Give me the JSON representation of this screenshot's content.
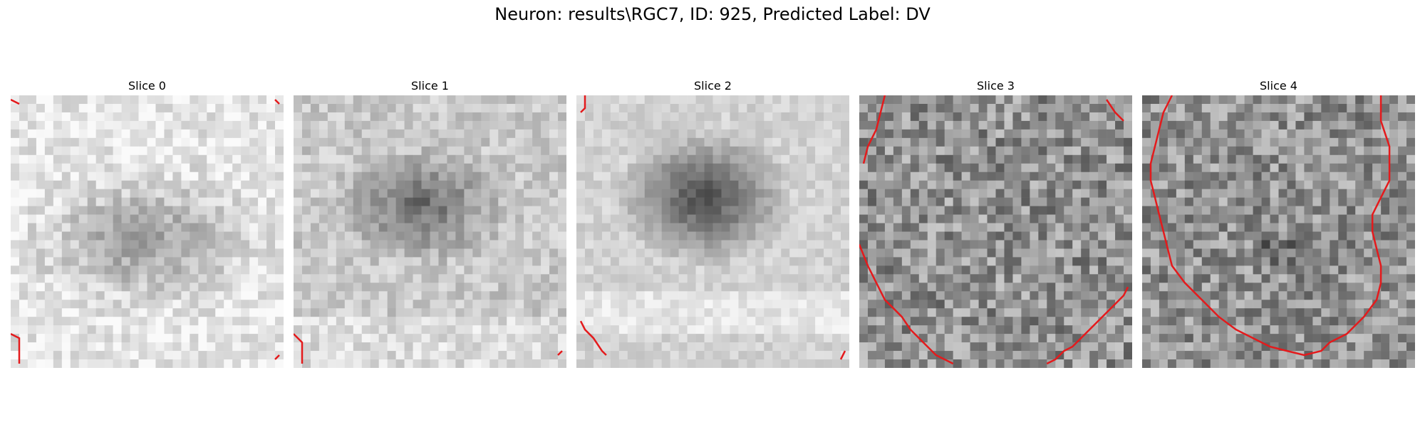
{
  "figure": {
    "title": "Neuron: results\\RGC7, ID: 925, Predicted Label: DV",
    "contour_color": "#e41a1c"
  },
  "panels": [
    {
      "title": "Slice 0"
    },
    {
      "title": "Slice 1"
    },
    {
      "title": "Slice 2"
    },
    {
      "title": "Slice 3"
    },
    {
      "title": "Slice 4"
    }
  ]
}
